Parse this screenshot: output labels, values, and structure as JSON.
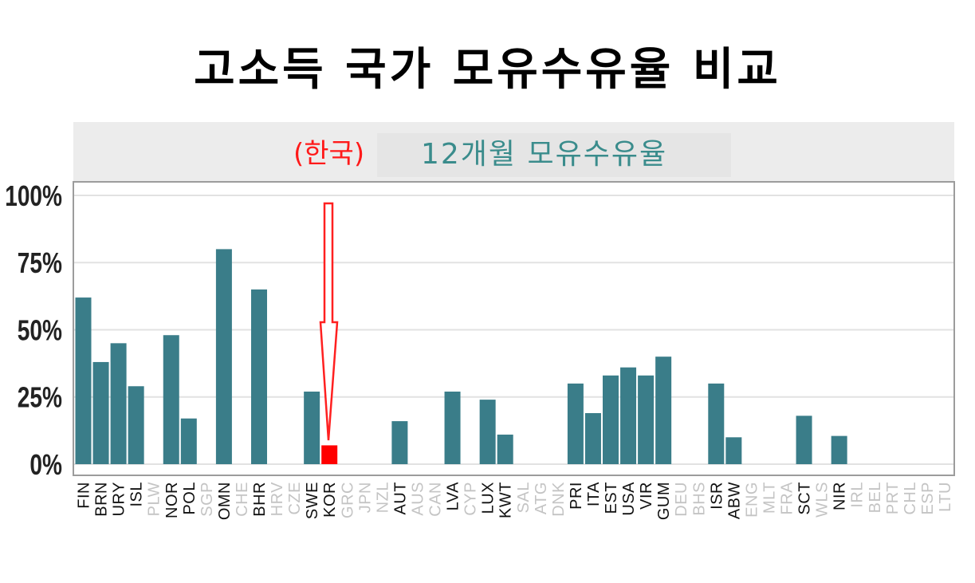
{
  "title": "고소득 국가 모유수유율 비교",
  "panel": {
    "highlight_label": "(한국)",
    "strip_title": "12개월 모유수유율"
  },
  "colors": {
    "bar": "#3a7d89",
    "highlight": "#ff0000",
    "tick_dark": "#111111",
    "tick_light": "#c4c4c4"
  },
  "chart_data": {
    "type": "bar",
    "title": "12개월 모유수유율",
    "ylim": [
      0,
      100
    ],
    "y_ticks": [
      "0%",
      "25%",
      "50%",
      "75%",
      "100%"
    ],
    "y_tick_values": [
      0,
      25,
      50,
      75,
      100
    ],
    "grid": true,
    "highlight": "KOR",
    "categories": [
      "FIN",
      "BRN",
      "URY",
      "ISL",
      "PLW",
      "NOR",
      "POL",
      "SGP",
      "OMN",
      "CHE",
      "BHR",
      "HRV",
      "CZE",
      "SWE",
      "KOR",
      "GRC",
      "JPN",
      "NZL",
      "AUT",
      "AUS",
      "CAN",
      "LVA",
      "CYP",
      "LUX",
      "KWT",
      "SAL",
      "ATG",
      "DNK",
      "PRI",
      "ITA",
      "EST",
      "USA",
      "VIR",
      "GUM",
      "DEU",
      "BHS",
      "ISR",
      "ABW",
      "ENG",
      "MLT",
      "FRA",
      "SCT",
      "WLS",
      "NIR",
      "IRL",
      "BEL",
      "PRT",
      "CHL",
      "ESP",
      "LTU"
    ],
    "values": [
      62,
      38,
      45,
      29,
      null,
      48,
      17,
      null,
      80,
      null,
      65,
      null,
      null,
      27,
      7,
      null,
      null,
      null,
      16,
      null,
      null,
      27,
      null,
      24,
      11,
      null,
      null,
      null,
      30,
      19,
      33,
      36,
      33,
      40,
      null,
      null,
      30,
      10,
      null,
      null,
      null,
      18,
      null,
      10.5,
      null,
      null,
      null,
      null,
      null,
      null
    ]
  }
}
